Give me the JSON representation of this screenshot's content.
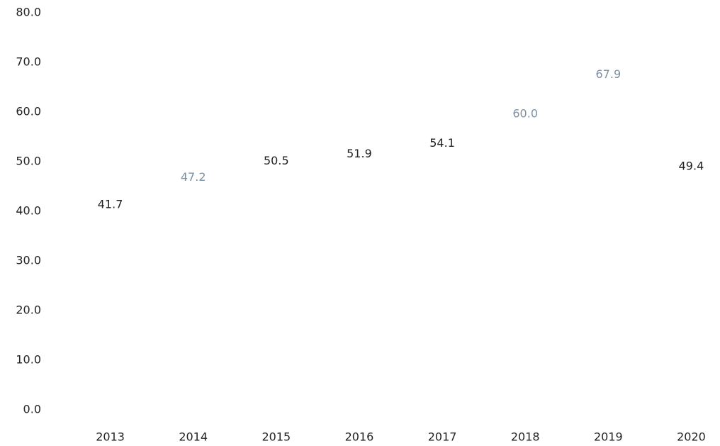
{
  "chart_data": {
    "type": "bar",
    "categories": [
      "2013",
      "2014",
      "2015",
      "2016",
      "2017",
      "2018",
      "2019",
      "2020"
    ],
    "values": [
      41.7,
      47.2,
      50.5,
      51.9,
      54.1,
      60.0,
      67.9,
      49.4
    ],
    "value_labels": [
      "41.7",
      "47.2",
      "50.5",
      "51.9",
      "54.1",
      "60.0",
      "67.9",
      "49.4"
    ],
    "label_colors": [
      "#222222",
      "#7d90a3",
      "#222222",
      "#222222",
      "#222222",
      "#7d90a3",
      "#7d90a3",
      "#222222"
    ],
    "ylim": [
      0,
      80
    ],
    "yticks": [
      {
        "value": 0,
        "label": "0.0"
      },
      {
        "value": 10,
        "label": "10.0"
      },
      {
        "value": 20,
        "label": "20.0"
      },
      {
        "value": 30,
        "label": "30.0"
      },
      {
        "value": 40,
        "label": "40.0"
      },
      {
        "value": 50,
        "label": "50.0"
      },
      {
        "value": 60,
        "label": "60.0"
      },
      {
        "value": 70,
        "label": "70.0"
      },
      {
        "value": 80,
        "label": "80.0"
      }
    ],
    "grid": false
  }
}
